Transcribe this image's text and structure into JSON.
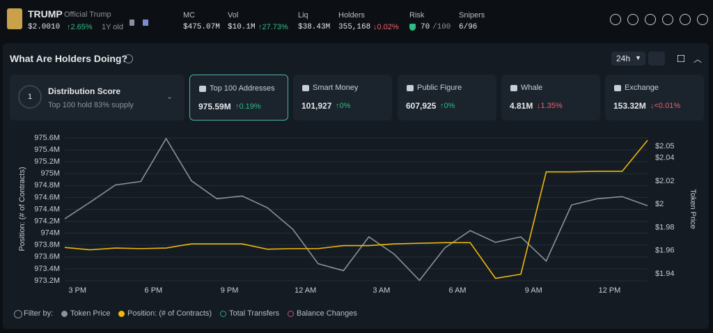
{
  "header": {
    "symbol": "TRUMP",
    "name": "Official Trump",
    "price": "$2.0010",
    "change": "↑2.65%",
    "age": "1Y old"
  },
  "stats": [
    {
      "label": "MC",
      "value": "$475.07M"
    },
    {
      "label": "Vol",
      "value": "$10.1M",
      "change": "↑27.73%"
    },
    {
      "label": "Liq",
      "value": "$38.43M"
    },
    {
      "label": "Holders",
      "value": "355,168",
      "change": "↓0.02%"
    },
    {
      "label": "Risk",
      "value": "70",
      "suffix": "/100"
    },
    {
      "label": "Snipers",
      "value": "6/96"
    }
  ],
  "panel": {
    "title": "What Are Holders Doing?",
    "range": "24h",
    "distribution": {
      "score": "1",
      "title": "Distribution Score",
      "subtitle": "Top 100 hold 83% supply"
    },
    "cards": [
      {
        "title": "Top 100 Addresses",
        "value": "975.59M",
        "change": "↑0.19%"
      },
      {
        "title": "Smart Money",
        "value": "101,927",
        "change": "↑0%"
      },
      {
        "title": "Public Figure",
        "value": "607,925",
        "change": "↑0%"
      },
      {
        "title": "Whale",
        "value": "4.81M",
        "change": "↓1.35%"
      },
      {
        "title": "Exchange",
        "value": "153.32M",
        "change": "↓<0.01%"
      }
    ]
  },
  "chart_data": {
    "type": "line",
    "ylabel": "Position: (# of Contracts)",
    "y2label": "Token Price",
    "xlim": [
      0,
      23
    ],
    "xticks": [
      {
        "value": 0.5,
        "label": "3 PM"
      },
      {
        "value": 3.5,
        "label": "6 PM"
      },
      {
        "value": 6.5,
        "label": "9 PM"
      },
      {
        "value": 9.5,
        "label": "12 AM"
      },
      {
        "value": 12.5,
        "label": "3 AM"
      },
      {
        "value": 15.5,
        "label": "6 AM"
      },
      {
        "value": 18.5,
        "label": "9 AM"
      },
      {
        "value": 21.5,
        "label": "12 PM"
      }
    ],
    "ylim": [
      973.2,
      975.6
    ],
    "yticks": [
      {
        "value": 973.2,
        "label": "973.2M"
      },
      {
        "value": 973.4,
        "label": "973.4M"
      },
      {
        "value": 973.6,
        "label": "973.6M"
      },
      {
        "value": 973.8,
        "label": "973.8M"
      },
      {
        "value": 974,
        "label": "974M"
      },
      {
        "value": 974.2,
        "label": "974.2M"
      },
      {
        "value": 974.4,
        "label": "974.4M"
      },
      {
        "value": 974.6,
        "label": "974.6M"
      },
      {
        "value": 974.8,
        "label": "974.8M"
      },
      {
        "value": 975,
        "label": "975M"
      },
      {
        "value": 975.2,
        "label": "975.2M"
      },
      {
        "value": 975.4,
        "label": "975.4M"
      },
      {
        "value": 975.6,
        "label": "975.6M"
      }
    ],
    "y2lim": [
      1.934,
      2.0573
    ],
    "y2ticks": [
      {
        "value": 1.94,
        "label": "$1.94"
      },
      {
        "value": 1.96,
        "label": "$1.96"
      },
      {
        "value": 1.98,
        "label": "$1.98"
      },
      {
        "value": 2,
        "label": "$2"
      },
      {
        "value": 2.02,
        "label": "$2.02"
      },
      {
        "value": 2.04,
        "label": "$2.04"
      },
      {
        "value": 2.05,
        "label": "$2.05"
      }
    ],
    "grid": true,
    "series": [
      {
        "name": "Token Price",
        "color": "#8a929c",
        "axis": "y2",
        "values": [
          1.9875,
          2.0018,
          2.0167,
          2.0197,
          2.0567,
          2.0203,
          2.0048,
          2.0072,
          1.997,
          1.9785,
          1.9487,
          1.9427,
          1.9719,
          1.957,
          1.9343,
          1.9624,
          1.9773,
          1.9672,
          1.9719,
          1.951,
          1.9994,
          2.0048,
          2.0066,
          1.9988
        ]
      },
      {
        "name": "Position: (# of Contracts)",
        "color": "#f0b90b",
        "values": [
          973.76,
          973.72,
          973.75,
          973.74,
          973.75,
          973.82,
          973.82,
          973.82,
          973.73,
          973.74,
          973.74,
          973.79,
          973.79,
          973.82,
          973.83,
          973.84,
          973.84,
          973.24,
          973.31,
          975.03,
          975.03,
          975.04,
          975.04,
          975.56
        ]
      }
    ]
  },
  "filter": {
    "label": "Filter by:",
    "extra": [
      {
        "name": "Total Transfers",
        "color": "#2aa58a"
      },
      {
        "name": "Balance Changes",
        "color": "#c0577a"
      }
    ]
  }
}
